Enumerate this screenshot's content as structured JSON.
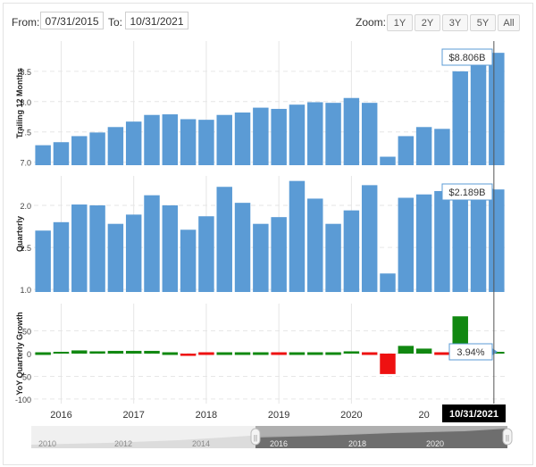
{
  "toolbar": {
    "from_label": "From:",
    "from_value": "07/31/2015",
    "to_label": "To:",
    "to_value": "10/31/2021",
    "zoom_label": "Zoom:",
    "zoom_buttons": [
      "1Y",
      "2Y",
      "3Y",
      "5Y",
      "All"
    ]
  },
  "colors": {
    "bar": "#5b9bd5",
    "positive": "#118811",
    "negative": "#ee1111",
    "grid": "#e6e6e6"
  },
  "chart_data": [
    {
      "type": "bar",
      "title": "",
      "ylabel": "Trailing 12 Months",
      "ylim": [
        6.95,
        9.0
      ],
      "yticks": [
        "7.0",
        "7.5",
        "8.0",
        "8.5"
      ],
      "x": [
        "2015-07",
        "2015-10",
        "2016-01",
        "2016-04",
        "2016-07",
        "2016-10",
        "2017-01",
        "2017-04",
        "2017-07",
        "2017-10",
        "2018-01",
        "2018-04",
        "2018-07",
        "2018-10",
        "2019-01",
        "2019-04",
        "2019-07",
        "2019-10",
        "2020-01",
        "2020-04",
        "2020-07",
        "2020-10",
        "2021-01",
        "2021-04",
        "2021-07",
        "2021-10"
      ],
      "values": [
        7.28,
        7.33,
        7.43,
        7.49,
        7.58,
        7.67,
        7.78,
        7.79,
        7.71,
        7.7,
        7.78,
        7.82,
        7.9,
        7.88,
        7.95,
        7.99,
        7.98,
        8.06,
        7.98,
        7.09,
        7.43,
        7.58,
        7.55,
        8.5,
        8.7,
        8.806
      ],
      "value_label": "$8.806B"
    },
    {
      "type": "bar",
      "title": "",
      "ylabel": "Quarterly",
      "ylim": [
        0.97,
        2.35
      ],
      "yticks": [
        "1.0",
        "1.5",
        "2.0"
      ],
      "x": [
        "2015-07",
        "2015-10",
        "2016-01",
        "2016-04",
        "2016-07",
        "2016-10",
        "2017-01",
        "2017-04",
        "2017-07",
        "2017-10",
        "2018-01",
        "2018-04",
        "2018-07",
        "2018-10",
        "2019-01",
        "2019-04",
        "2019-07",
        "2019-10",
        "2020-01",
        "2020-04",
        "2020-07",
        "2020-10",
        "2021-01",
        "2021-04",
        "2021-07",
        "2021-10"
      ],
      "values": [
        1.7,
        1.8,
        2.01,
        2.0,
        1.78,
        1.89,
        2.12,
        2.0,
        1.71,
        1.87,
        2.22,
        2.03,
        1.78,
        1.86,
        2.29,
        2.08,
        1.78,
        1.94,
        2.24,
        1.19,
        2.09,
        2.13,
        2.17,
        2.2,
        2.21,
        2.189
      ],
      "value_label": "$2.189B"
    },
    {
      "type": "bar",
      "title": "",
      "ylabel": "YoY Quarterly Growth",
      "ylim": [
        -110,
        110
      ],
      "yticks": [
        "-100",
        "-50",
        "0",
        "50"
      ],
      "x": [
        "2015-07",
        "2015-10",
        "2016-01",
        "2016-04",
        "2016-07",
        "2016-10",
        "2017-01",
        "2017-04",
        "2017-07",
        "2017-10",
        "2018-01",
        "2018-04",
        "2018-07",
        "2018-10",
        "2019-01",
        "2019-04",
        "2019-07",
        "2019-10",
        "2020-01",
        "2020-04",
        "2020-07",
        "2020-10",
        "2021-01",
        "2021-04",
        "2021-07",
        "2021-10"
      ],
      "values": [
        3,
        4,
        7,
        5,
        6,
        6,
        6,
        2,
        -5,
        -2,
        3,
        1,
        2,
        -1,
        2,
        1,
        0,
        5,
        -2,
        -45,
        17,
        11,
        -3,
        82,
        6,
        3.94
      ],
      "value_label": "3.94%"
    }
  ],
  "x_axis": {
    "year_labels": [
      "2016",
      "2017",
      "2018",
      "2019",
      "2020",
      "20"
    ],
    "cursor_label": "10/31/2021"
  },
  "navigator": {
    "year_labels": [
      "2010",
      "2012",
      "2014",
      "2016",
      "2018",
      "2020"
    ],
    "handle_glyph": "||"
  }
}
